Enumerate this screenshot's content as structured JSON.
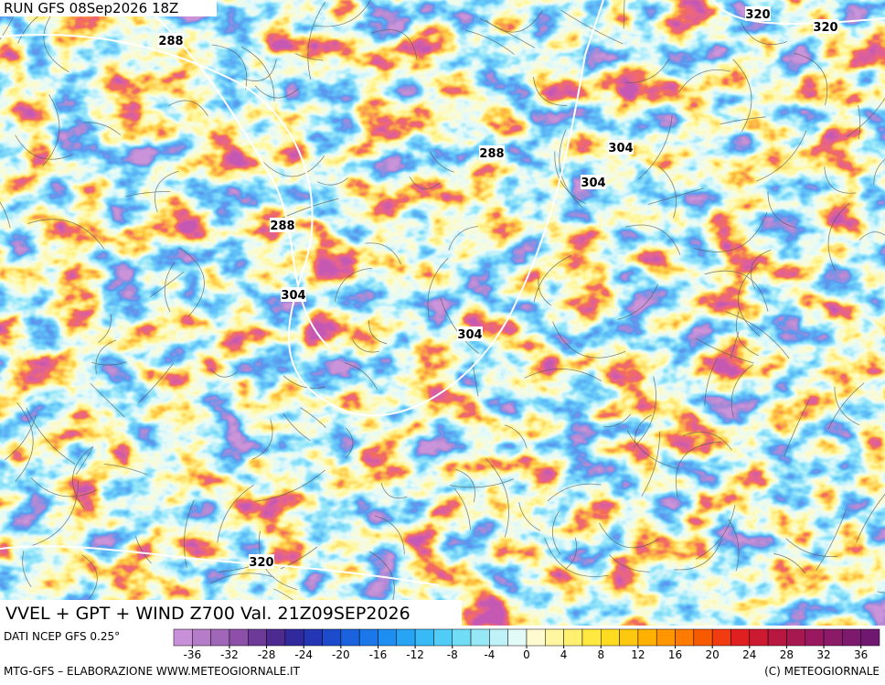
{
  "header": {
    "run": "RUN GFS 08Sep2026 18Z"
  },
  "map": {
    "contour_labels": [
      288,
      320,
      320,
      288,
      304,
      304,
      288,
      304,
      304,
      320
    ]
  },
  "title": "VVEL + GPT + WIND Z700 Val. 21Z09SEP2026",
  "source": "DATI NCEP GFS 0.25°",
  "colorbar": {
    "lim": [
      -38,
      38
    ],
    "ticks": [
      -36,
      -32,
      -28,
      -24,
      -20,
      -16,
      -12,
      -8,
      -4,
      0,
      4,
      8,
      12,
      16,
      20,
      24,
      28,
      32,
      36
    ],
    "colors": [
      "#c890d8",
      "#b57cc8",
      "#a066b8",
      "#8c50a8",
      "#6e3a98",
      "#4c2a90",
      "#302a9c",
      "#2436b4",
      "#1c4ccc",
      "#1a62de",
      "#1a78ea",
      "#1e8ef2",
      "#28a4f4",
      "#38baf6",
      "#50ccf6",
      "#70dcf6",
      "#96e8f6",
      "#bef2f8",
      "#e2faf8",
      "#fffad0",
      "#fff6a0",
      "#fff070",
      "#ffe840",
      "#ffdc20",
      "#ffc810",
      "#ffb000",
      "#ff9600",
      "#ff7a00",
      "#f85a00",
      "#f03c10",
      "#e02020",
      "#cc1a30",
      "#b81840",
      "#a81850",
      "#9a1860",
      "#8c1a68",
      "#7e1a6e",
      "#701870"
    ]
  },
  "footer": {
    "left": "MTG-GFS – ELABORAZIONE WWW.METEOGIORNALE.IT",
    "right": "(C) METEOGIORNALE"
  }
}
